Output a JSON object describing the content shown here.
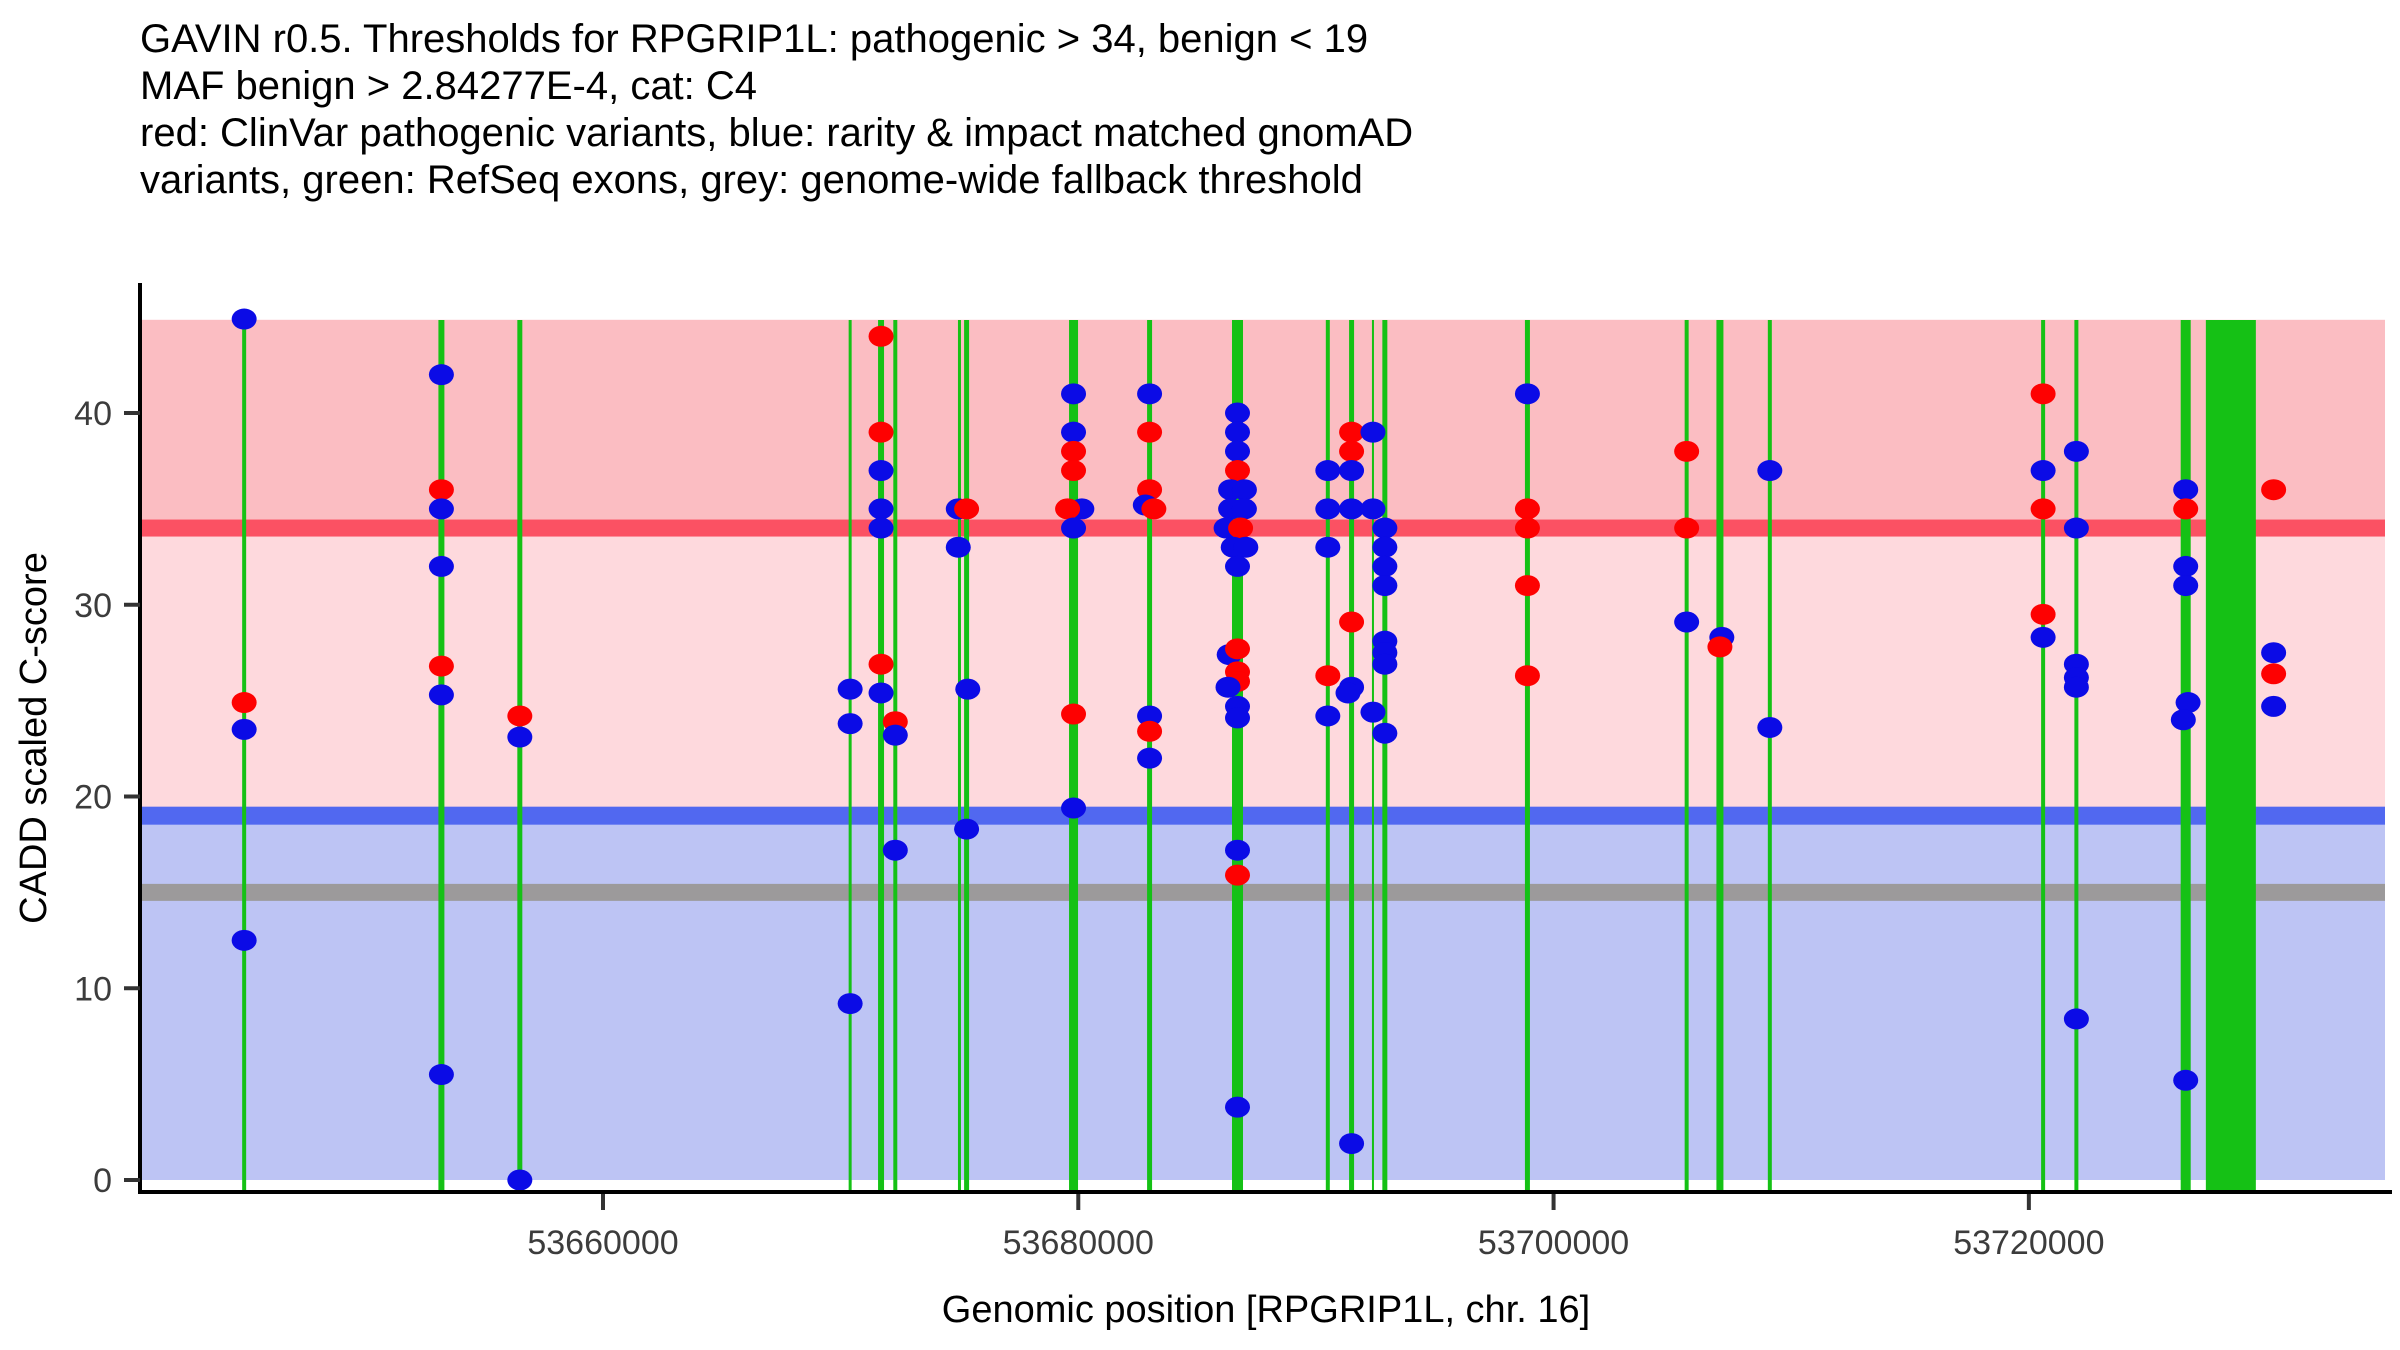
{
  "title_lines": [
    "GAVIN r0.5. Thresholds for RPGRIP1L: pathogenic > 34, benign < 19",
    "MAF benign > 2.84277E-4, cat: C4",
    "red: ClinVar pathogenic variants, blue: rarity & impact matched gnomAD",
    "variants, green: RefSeq exons, grey: genome-wide fallback threshold"
  ],
  "axes": {
    "y_label": "CADD scaled C-score",
    "x_label": "Genomic position [RPGRIP1L, chr. 16]",
    "y_ticks": [
      0,
      10,
      20,
      30,
      40
    ],
    "x_ticks": [
      {
        "pos": 53660000,
        "label": "53660000"
      },
      {
        "pos": 53680000,
        "label": "53680000"
      },
      {
        "pos": 53700000,
        "label": "53700000"
      },
      {
        "pos": 53720000,
        "label": "53720000"
      }
    ]
  },
  "colors": {
    "band_pathogenic": "#FBBDC2",
    "band_mid": "#FED9DD",
    "band_benign": "#BDC4F4",
    "threshold_pathogenic": "#FB5163",
    "threshold_benign": "#5168F0",
    "threshold_fallback": "#9C9A9B",
    "exon_green": "#15C115",
    "point_red": "#FE0101",
    "point_blue": "#0B0BE6",
    "axis_black": "#000000",
    "tick_grey": "#333333"
  },
  "chart_data": {
    "type": "scatter",
    "title": "GAVIN r0.5 thresholds for RPGRIP1L",
    "xlabel": "Genomic position [RPGRIP1L, chr. 16]",
    "ylabel": "CADD scaled C-score",
    "x_domain": [
      53640600,
      53735200
    ],
    "y_domain": [
      -0.85,
      46.7
    ],
    "grid": false,
    "legend": "none",
    "thresholds": [
      {
        "name": "gene pathogenic",
        "value": 34,
        "color": "#FB5163",
        "thickness_px": 17
      },
      {
        "name": "gene benign",
        "value": 19,
        "color": "#5168F0",
        "thickness_px": 18
      },
      {
        "name": "genome-wide fallback",
        "value": 15,
        "color": "#9C9A9B",
        "thickness_px": 17
      }
    ],
    "bands": [
      {
        "name": "pathogenic-region",
        "from": 34,
        "to": 44.86,
        "color": "#FBBDC2"
      },
      {
        "name": "intermediate-region",
        "from": 19,
        "to": 34,
        "color": "#FED9DD"
      },
      {
        "name": "benign-region",
        "from": 0,
        "to": 19,
        "color": "#BDC4F4"
      }
    ],
    "exons": [
      {
        "pos": 53644900,
        "width_bp": 168
      },
      {
        "pos": 53653200,
        "width_bp": 252
      },
      {
        "pos": 53656500,
        "width_bp": 210
      },
      {
        "pos": 53670400,
        "width_bp": 126
      },
      {
        "pos": 53671700,
        "width_bp": 252
      },
      {
        "pos": 53672300,
        "width_bp": 168
      },
      {
        "pos": 53675000,
        "width_bp": 126
      },
      {
        "pos": 53675300,
        "width_bp": 210
      },
      {
        "pos": 53679800,
        "width_bp": 379
      },
      {
        "pos": 53683000,
        "width_bp": 210
      },
      {
        "pos": 53686700,
        "width_bp": 463
      },
      {
        "pos": 53690500,
        "width_bp": 168
      },
      {
        "pos": 53691500,
        "width_bp": 210
      },
      {
        "pos": 53692400,
        "width_bp": 84
      },
      {
        "pos": 53692900,
        "width_bp": 210
      },
      {
        "pos": 53698900,
        "width_bp": 210
      },
      {
        "pos": 53705600,
        "width_bp": 168
      },
      {
        "pos": 53707000,
        "width_bp": 295
      },
      {
        "pos": 53709100,
        "width_bp": 168
      },
      {
        "pos": 53720600,
        "width_bp": 168
      },
      {
        "pos": 53722000,
        "width_bp": 168
      },
      {
        "pos": 53726600,
        "width_bp": 421
      },
      {
        "pos": 53728500,
        "width_bp": 2104
      }
    ],
    "points": [
      {
        "p": 53644900,
        "v": 44.9,
        "c": "b"
      },
      {
        "p": 53644900,
        "v": 24.9,
        "c": "r"
      },
      {
        "p": 53644900,
        "v": 23.5,
        "c": "b"
      },
      {
        "p": 53644900,
        "v": 12.5,
        "c": "b"
      },
      {
        "p": 53653200,
        "v": 42.0,
        "c": "b"
      },
      {
        "p": 53653200,
        "v": 36.0,
        "c": "r"
      },
      {
        "p": 53653200,
        "v": 35.0,
        "c": "b"
      },
      {
        "p": 53653200,
        "v": 32.0,
        "c": "b"
      },
      {
        "p": 53653200,
        "v": 26.8,
        "c": "r"
      },
      {
        "p": 53653200,
        "v": 25.3,
        "c": "b"
      },
      {
        "p": 53653200,
        "v": 5.5,
        "c": "b"
      },
      {
        "p": 53656500,
        "v": 24.2,
        "c": "r"
      },
      {
        "p": 53656500,
        "v": 23.1,
        "c": "b"
      },
      {
        "p": 53656500,
        "v": 0.0,
        "c": "b"
      },
      {
        "p": 53670400,
        "v": 25.6,
        "c": "b"
      },
      {
        "p": 53670400,
        "v": 23.8,
        "c": "b"
      },
      {
        "p": 53670400,
        "v": 9.2,
        "c": "b"
      },
      {
        "p": 53671700,
        "v": 44.0,
        "c": "r"
      },
      {
        "p": 53671700,
        "v": 39.0,
        "c": "r"
      },
      {
        "p": 53671700,
        "v": 37.0,
        "c": "b"
      },
      {
        "p": 53671700,
        "v": 35.0,
        "c": "b"
      },
      {
        "p": 53671700,
        "v": 34.0,
        "c": "b"
      },
      {
        "p": 53671700,
        "v": 26.9,
        "c": "r"
      },
      {
        "p": 53671700,
        "v": 25.4,
        "c": "b"
      },
      {
        "p": 53672300,
        "v": 23.9,
        "c": "r"
      },
      {
        "p": 53672300,
        "v": 23.2,
        "c": "b"
      },
      {
        "p": 53672300,
        "v": 17.2,
        "c": "b"
      },
      {
        "p": 53674950,
        "v": 35.0,
        "c": "b"
      },
      {
        "p": 53675300,
        "v": 35.0,
        "c": "r"
      },
      {
        "p": 53674950,
        "v": 33.0,
        "c": "b"
      },
      {
        "p": 53675350,
        "v": 25.6,
        "c": "b"
      },
      {
        "p": 53675300,
        "v": 18.3,
        "c": "b"
      },
      {
        "p": 53679800,
        "v": 41.0,
        "c": "b"
      },
      {
        "p": 53679800,
        "v": 39.0,
        "c": "b"
      },
      {
        "p": 53679800,
        "v": 38.0,
        "c": "r"
      },
      {
        "p": 53679800,
        "v": 37.0,
        "c": "r"
      },
      {
        "p": 53679800,
        "v": 35.0,
        "c": "b",
        "d": 350
      },
      {
        "p": 53679800,
        "v": 35.0,
        "c": "r",
        "d": -250
      },
      {
        "p": 53679800,
        "v": 34.0,
        "c": "b"
      },
      {
        "p": 53679800,
        "v": 24.3,
        "c": "r"
      },
      {
        "p": 53679800,
        "v": 19.4,
        "c": "b"
      },
      {
        "p": 53683000,
        "v": 41.0,
        "c": "b"
      },
      {
        "p": 53683000,
        "v": 39.0,
        "c": "r"
      },
      {
        "p": 53683000,
        "v": 36.0,
        "c": "r"
      },
      {
        "p": 53683000,
        "v": 35.2,
        "c": "b",
        "d": -180
      },
      {
        "p": 53683000,
        "v": 35.0,
        "c": "r",
        "d": 180
      },
      {
        "p": 53683000,
        "v": 24.2,
        "c": "b"
      },
      {
        "p": 53683000,
        "v": 23.4,
        "c": "r"
      },
      {
        "p": 53683000,
        "v": 22.0,
        "c": "b"
      },
      {
        "p": 53686700,
        "v": 40.0,
        "c": "b"
      },
      {
        "p": 53686700,
        "v": 39.0,
        "c": "b"
      },
      {
        "p": 53686700,
        "v": 38.0,
        "c": "b"
      },
      {
        "p": 53686700,
        "v": 37.0,
        "c": "r"
      },
      {
        "p": 53686700,
        "v": 36.0,
        "c": "b",
        "d": -290
      },
      {
        "p": 53686700,
        "v": 36.0,
        "c": "b",
        "d": 290
      },
      {
        "p": 53686700,
        "v": 35.0,
        "c": "b",
        "d": -290
      },
      {
        "p": 53686700,
        "v": 35.0,
        "c": "b",
        "d": 290
      },
      {
        "p": 53686700,
        "v": 34.0,
        "c": "b",
        "d": -480
      },
      {
        "p": 53686700,
        "v": 34.0,
        "c": "r",
        "d": 130
      },
      {
        "p": 53686700,
        "v": 33.0,
        "c": "b",
        "d": -180
      },
      {
        "p": 53686700,
        "v": 33.0,
        "c": "b",
        "d": 350
      },
      {
        "p": 53686700,
        "v": 32.0,
        "c": "b"
      },
      {
        "p": 53686700,
        "v": 27.4,
        "c": "b",
        "d": -350
      },
      {
        "p": 53686700,
        "v": 27.7,
        "c": "r"
      },
      {
        "p": 53686700,
        "v": 26.5,
        "c": "r"
      },
      {
        "p": 53686700,
        "v": 26.0,
        "c": "r"
      },
      {
        "p": 53686700,
        "v": 25.7,
        "c": "b",
        "d": -400
      },
      {
        "p": 53686700,
        "v": 24.7,
        "c": "b"
      },
      {
        "p": 53686700,
        "v": 24.1,
        "c": "b"
      },
      {
        "p": 53686700,
        "v": 17.2,
        "c": "b"
      },
      {
        "p": 53686700,
        "v": 15.9,
        "c": "r"
      },
      {
        "p": 53686700,
        "v": 3.8,
        "c": "b"
      },
      {
        "p": 53690500,
        "v": 37.0,
        "c": "b"
      },
      {
        "p": 53690500,
        "v": 35.0,
        "c": "b"
      },
      {
        "p": 53690500,
        "v": 33.0,
        "c": "b"
      },
      {
        "p": 53690500,
        "v": 26.3,
        "c": "r"
      },
      {
        "p": 53690500,
        "v": 24.2,
        "c": "b"
      },
      {
        "p": 53691500,
        "v": 39.0,
        "c": "r"
      },
      {
        "p": 53691500,
        "v": 38.0,
        "c": "r"
      },
      {
        "p": 53691500,
        "v": 37.0,
        "c": "b"
      },
      {
        "p": 53691500,
        "v": 35.0,
        "c": "b"
      },
      {
        "p": 53691500,
        "v": 29.1,
        "c": "r"
      },
      {
        "p": 53691500,
        "v": 25.7,
        "c": "b"
      },
      {
        "p": 53691500,
        "v": 25.4,
        "c": "b",
        "d": -150
      },
      {
        "p": 53691500,
        "v": 1.9,
        "c": "b"
      },
      {
        "p": 53692400,
        "v": 39.0,
        "c": "b"
      },
      {
        "p": 53692400,
        "v": 35.0,
        "c": "b"
      },
      {
        "p": 53692400,
        "v": 24.4,
        "c": "b"
      },
      {
        "p": 53692900,
        "v": 34.0,
        "c": "b"
      },
      {
        "p": 53692900,
        "v": 33.0,
        "c": "b"
      },
      {
        "p": 53692900,
        "v": 32.0,
        "c": "b"
      },
      {
        "p": 53692900,
        "v": 31.0,
        "c": "b"
      },
      {
        "p": 53692900,
        "v": 28.1,
        "c": "b"
      },
      {
        "p": 53692900,
        "v": 27.5,
        "c": "b"
      },
      {
        "p": 53692900,
        "v": 26.9,
        "c": "b"
      },
      {
        "p": 53692900,
        "v": 23.3,
        "c": "b"
      },
      {
        "p": 53698900,
        "v": 41.0,
        "c": "b"
      },
      {
        "p": 53698900,
        "v": 35.0,
        "c": "r"
      },
      {
        "p": 53698900,
        "v": 34.0,
        "c": "r"
      },
      {
        "p": 53698900,
        "v": 31.0,
        "c": "r"
      },
      {
        "p": 53698900,
        "v": 26.3,
        "c": "r"
      },
      {
        "p": 53705600,
        "v": 38.0,
        "c": "r"
      },
      {
        "p": 53705600,
        "v": 34.0,
        "c": "r"
      },
      {
        "p": 53705600,
        "v": 29.1,
        "c": "b"
      },
      {
        "p": 53707000,
        "v": 28.3,
        "c": "b",
        "d": 80
      },
      {
        "p": 53707000,
        "v": 27.8,
        "c": "r"
      },
      {
        "p": 53709100,
        "v": 37.0,
        "c": "b"
      },
      {
        "p": 53709100,
        "v": 23.6,
        "c": "b"
      },
      {
        "p": 53720600,
        "v": 41.0,
        "c": "r"
      },
      {
        "p": 53720600,
        "v": 37.0,
        "c": "b"
      },
      {
        "p": 53720600,
        "v": 35.0,
        "c": "r"
      },
      {
        "p": 53720600,
        "v": 29.5,
        "c": "r"
      },
      {
        "p": 53720600,
        "v": 28.3,
        "c": "b"
      },
      {
        "p": 53722000,
        "v": 38.0,
        "c": "b"
      },
      {
        "p": 53722000,
        "v": 34.0,
        "c": "b"
      },
      {
        "p": 53722000,
        "v": 26.9,
        "c": "b"
      },
      {
        "p": 53722000,
        "v": 26.2,
        "c": "b"
      },
      {
        "p": 53722000,
        "v": 25.7,
        "c": "b"
      },
      {
        "p": 53722000,
        "v": 8.4,
        "c": "b"
      },
      {
        "p": 53726600,
        "v": 36.0,
        "c": "b"
      },
      {
        "p": 53726600,
        "v": 35.0,
        "c": "r"
      },
      {
        "p": 53726600,
        "v": 32.0,
        "c": "b"
      },
      {
        "p": 53726600,
        "v": 31.0,
        "c": "b"
      },
      {
        "p": 53726600,
        "v": 24.9,
        "c": "b",
        "d": 100
      },
      {
        "p": 53726600,
        "v": 24.0,
        "c": "b",
        "d": -100
      },
      {
        "p": 53726600,
        "v": 5.2,
        "c": "b"
      },
      {
        "p": 53730300,
        "v": 36.0,
        "c": "r"
      },
      {
        "p": 53730300,
        "v": 27.5,
        "c": "b"
      },
      {
        "p": 53730300,
        "v": 26.4,
        "c": "r"
      },
      {
        "p": 53730300,
        "v": 24.7,
        "c": "b"
      }
    ]
  }
}
